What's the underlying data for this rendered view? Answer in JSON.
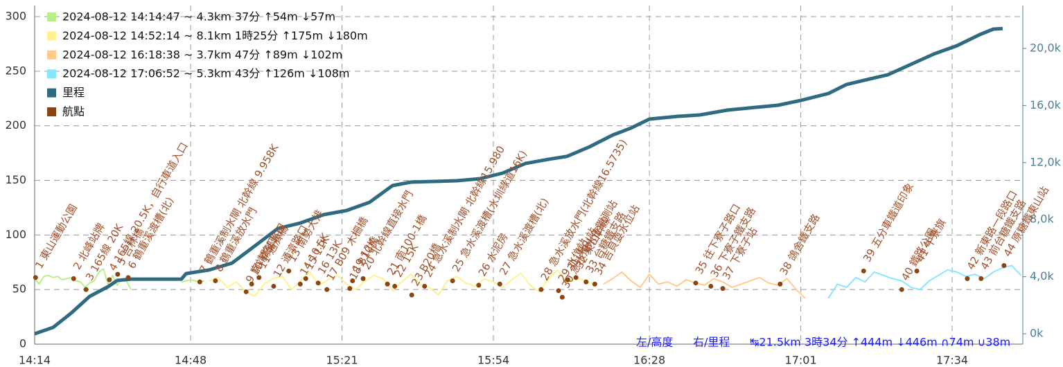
{
  "chart_data": {
    "type": "line",
    "xlim": [
      854,
      1069.4
    ],
    "xticks": [
      {
        "value": 854,
        "label": "14:14"
      },
      {
        "value": 888,
        "label": "14:48"
      },
      {
        "value": 921,
        "label": "15:21"
      },
      {
        "value": 954,
        "label": "15:54"
      },
      {
        "value": 988,
        "label": "16:28"
      },
      {
        "value": 1021,
        "label": "17:01"
      },
      {
        "value": 1054,
        "label": "17:34"
      }
    ],
    "ylim": [
      0,
      300
    ],
    "yticks": [
      0,
      50,
      100,
      150,
      200,
      250,
      300
    ],
    "y2lim": [
      -728,
      22233
    ],
    "y2ticks": [
      {
        "value": 0,
        "label": "0k"
      },
      {
        "value": 4000,
        "label": "4,0k"
      },
      {
        "value": 8000,
        "label": "8,0k"
      },
      {
        "value": 12000,
        "label": "12,0k"
      },
      {
        "value": 16000,
        "label": "16,0k"
      },
      {
        "value": 20000,
        "label": "20,0k"
      }
    ],
    "grid": true,
    "legend": "top-left",
    "series": [
      {
        "name": "2024-08-12 14:14:47 ~ 4.3km 37分 ↑54m ↓57m",
        "color": "#b8f088",
        "x": [
          854,
          855,
          856,
          857,
          858,
          859,
          860,
          861,
          862,
          863,
          864,
          865,
          866,
          867,
          868,
          869,
          870,
          871,
          872,
          873,
          874,
          875,
          880,
          886,
          887,
          888,
          889,
          890,
          891
        ],
        "values": [
          60,
          55,
          62,
          63,
          61,
          62,
          59,
          60,
          61,
          58,
          57,
          52,
          56,
          58,
          66,
          69,
          55,
          63,
          54,
          60,
          58,
          50,
          null,
          57,
          58,
          59,
          58,
          57,
          58
        ]
      },
      {
        "name": "2024-08-12 14:52:14 ~ 8.1km 1時25分 ↑175m ↓180m",
        "color": "#fff28a",
        "x": [
          892,
          894,
          896,
          898,
          900,
          902,
          904,
          906,
          908,
          910,
          912,
          914,
          916,
          918,
          920,
          922,
          924,
          926,
          928,
          930,
          932,
          934,
          936,
          938,
          940,
          942,
          944,
          946,
          948,
          950,
          952,
          954,
          956,
          958,
          960,
          962,
          964,
          966,
          968,
          970,
          972,
          974,
          976
        ],
        "values": [
          58,
          61,
          52,
          57,
          48,
          44,
          55,
          60,
          62,
          50,
          58,
          66,
          54,
          59,
          63,
          55,
          50,
          58,
          63,
          60,
          49,
          57,
          64,
          55,
          52,
          45,
          58,
          62,
          56,
          53,
          60,
          57,
          52,
          59,
          65,
          54,
          48,
          60,
          68,
          56,
          61,
          58,
          55
        ]
      },
      {
        "name": "2024-08-12 16:18:38 ~ 3.7km 47分 ↑89m ↓102m",
        "color": "#ffcc88",
        "x": [
          978,
          980,
          982,
          984,
          986,
          988,
          990,
          992,
          994,
          996,
          998,
          1000,
          1002,
          1004,
          1006,
          1008,
          1010,
          1012,
          1014,
          1016,
          1018,
          1020,
          1022
        ],
        "values": [
          55,
          60,
          66,
          58,
          52,
          64,
          55,
          57,
          53,
          59,
          56,
          54,
          60,
          57,
          52,
          55,
          58,
          61,
          56,
          54,
          60,
          50,
          42
        ]
      },
      {
        "name": "2024-08-12 17:06:52 ~ 5.3km 43分 ↑126m ↓108m",
        "color": "#88e6ff",
        "x": [
          1027,
          1029,
          1031,
          1033,
          1035,
          1037,
          1039,
          1041,
          1043,
          1045,
          1047,
          1049,
          1051,
          1053,
          1055,
          1057,
          1059,
          1061,
          1063,
          1065,
          1067,
          1069
        ],
        "values": [
          42,
          55,
          52,
          61,
          57,
          66,
          63,
          60,
          58,
          52,
          50,
          58,
          63,
          68,
          66,
          62,
          64,
          60,
          66,
          70,
          72,
          63
        ]
      },
      {
        "name": "里程",
        "color": "#2e6b80",
        "axis": "y2",
        "x": [
          854,
          858,
          862,
          866,
          870,
          872,
          875,
          886,
          887,
          892,
          897,
          902,
          907,
          912,
          917,
          922,
          927,
          932,
          936,
          941,
          946,
          951,
          956,
          961,
          966,
          970,
          975,
          980,
          984,
          988,
          994,
          999,
          1005,
          1011,
          1016,
          1021,
          1027,
          1031,
          1036,
          1040,
          1046,
          1050,
          1055,
          1060,
          1063,
          1065
        ],
        "values": [
          0,
          440,
          1460,
          2620,
          3300,
          3740,
          3830,
          3830,
          4220,
          4470,
          4950,
          6160,
          7380,
          7770,
          8350,
          8640,
          9220,
          10390,
          10630,
          10680,
          10730,
          10870,
          11260,
          11940,
          12230,
          12430,
          13110,
          13930,
          14420,
          15050,
          15240,
          15340,
          15680,
          15870,
          16020,
          16360,
          16840,
          17480,
          17860,
          18160,
          19030,
          19610,
          20190,
          20970,
          21360,
          21400
        ]
      },
      {
        "name": "航點",
        "color": "#8b4513",
        "type": "scatter",
        "x": [
          854.2,
          862.5,
          865.2,
          870.3,
          872.1,
          874.4,
          890.0,
          893.4,
          900.1,
          901.3,
          902.9,
          906.1,
          909.4,
          911.9,
          913.1,
          915.8,
          917.7,
          922.7,
          923.3,
          925.6,
          930.9,
          932.5,
          936.2,
          939.0,
          945.1,
          950.8,
          955.4,
          964.4,
          968.2,
          969.0,
          970.2,
          972.0,
          974.2,
          976.1,
          998.1,
          1001.4,
          1004.0,
          1016.5,
          1034.7,
          1043.0,
          1046.3,
          1057.3,
          1060.3,
          1065.3
        ],
        "values": [
          61,
          60,
          50,
          59,
          64,
          61,
          57,
          58,
          48,
          55,
          61,
          53,
          67,
          55,
          60,
          56,
          50,
          51,
          58,
          60,
          55,
          53,
          45,
          53,
          58,
          54,
          55,
          50,
          49,
          43,
          59,
          61,
          57,
          55,
          56,
          53,
          51,
          55,
          67,
          50,
          67,
          60,
          60,
          72
        ],
        "labels": [
          "1 東山運動公園",
          "2 北峰站牌",
          "3 165線 20K",
          "4 165線 20.5K，自行車道入口",
          "5 吉林橋",
          "6 鶴重溪渡槽(北)",
          "7 鶴重溪制水閘 北幹線 9.958K",
          "8 鶴重溪放水門",
          "9 南靖路口",
          "10 南勢路口",
          "11 通濟橋",
          "12 通濟路口",
          "13 南勢大排",
          "14 10.5K",
          "15 11K",
          "16 13K",
          "17 B09 木柵橋",
          "18 B10橋",
          "19 12K",
          "20 北幹線直接水門",
          "21 南100-1橋",
          "22 15K",
          "23 B20橋",
          "24 急水溪制水閘 北幹線15.980",
          "25 急水溪渡槽(水圳綠道16K)",
          "26 水泥房",
          "27 急水溪渡槽(北)",
          "28 急水溪放水門(北幹線16.5735)",
          "29 水位站",
          "30 急水溪水位觀測站",
          "31 東山站",
          "32 東山幹線",
          "33 台糖鐵支路",
          "34 吉貝耍水位站",
          "35 往下寮子路口",
          "36 下寮子鐵支路",
          "37 下寮子站",
          "38 鴿舍鐵支路",
          "39 五分車鐵道印象",
          "40 鐵路公園",
          "41 牛寮旗",
          "42 新東路一段路口",
          "43 前台糖鐵支路",
          "44 原糖鐵東山站"
        ]
      }
    ],
    "annotations": [
      "左/高度",
      "右/里程",
      "↹21.5km 3時34分 ↑444m ↓446m ∩74m ∪38m"
    ]
  }
}
